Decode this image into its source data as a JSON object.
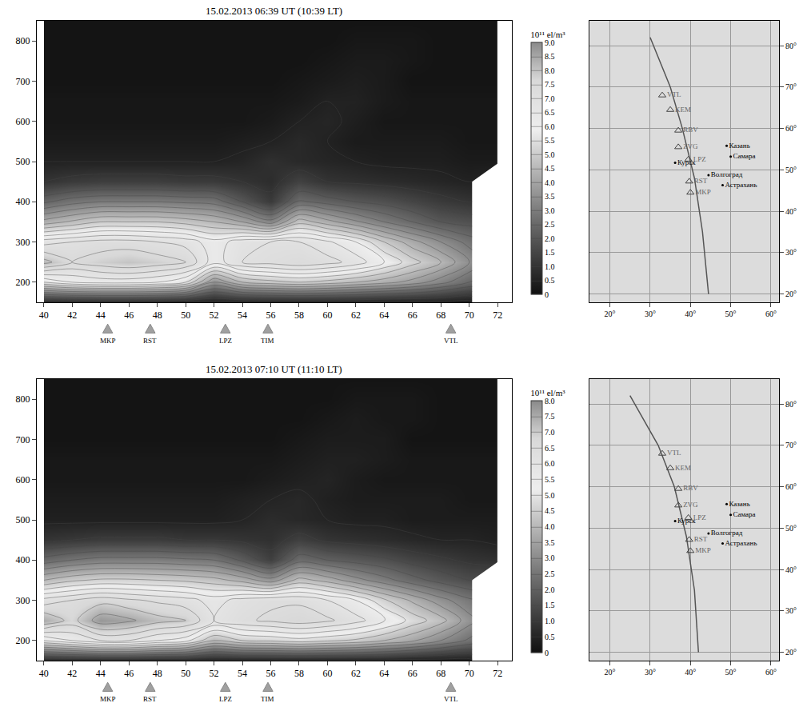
{
  "chart_data": [
    {
      "type": "contour",
      "title": "15.02.2013 06:39 UT (10:39 LT)",
      "x": [
        40,
        42,
        44,
        46,
        48,
        50,
        52,
        54,
        56,
        58,
        60,
        62,
        64,
        66,
        68,
        70,
        72
      ],
      "y": [
        150,
        200,
        250,
        300,
        350,
        400,
        450,
        500,
        550,
        600,
        650,
        700,
        750,
        800,
        850
      ],
      "z": [
        [
          0.6,
          0.6,
          0.6,
          0.6,
          0.6,
          0.5,
          0.4,
          0.5,
          0.5,
          0.5,
          0.5,
          0.5,
          0.4,
          0.4,
          0.4,
          0.3,
          null
        ],
        [
          5.5,
          6.0,
          6.2,
          6.2,
          6.0,
          5.5,
          3.5,
          4.5,
          4.8,
          5.0,
          4.8,
          4.5,
          4.2,
          3.8,
          3.2,
          2.5,
          null
        ],
        [
          8.2,
          7.5,
          7.8,
          8.0,
          7.8,
          7.5,
          6.2,
          7.0,
          7.2,
          7.4,
          7.2,
          6.8,
          6.0,
          5.2,
          4.5,
          3.5,
          null
        ],
        [
          6.8,
          7.0,
          7.2,
          7.2,
          7.0,
          6.8,
          6.2,
          6.8,
          7.0,
          7.0,
          6.6,
          6.0,
          5.0,
          4.2,
          3.5,
          2.8,
          null
        ],
        [
          4.2,
          4.6,
          5.0,
          5.0,
          5.0,
          4.8,
          4.5,
          4.0,
          3.2,
          4.8,
          4.2,
          3.6,
          3.0,
          2.5,
          2.0,
          1.8,
          null
        ],
        [
          2.4,
          2.8,
          3.0,
          3.0,
          3.0,
          2.9,
          2.8,
          2.0,
          1.2,
          2.6,
          2.3,
          2.0,
          1.8,
          1.5,
          1.2,
          1.0,
          null
        ],
        [
          1.0,
          1.2,
          1.3,
          1.3,
          1.3,
          1.2,
          1.2,
          1.0,
          0.8,
          1.4,
          1.0,
          0.9,
          0.8,
          0.7,
          0.6,
          0.5,
          null
        ],
        [
          0.5,
          0.5,
          0.5,
          0.5,
          0.5,
          0.5,
          0.5,
          0.6,
          0.9,
          0.7,
          0.6,
          0.5,
          0.4,
          0.4,
          0.4,
          0.3,
          0.3
        ],
        [
          0.3,
          0.3,
          0.3,
          0.3,
          0.3,
          0.3,
          0.3,
          0.4,
          0.5,
          0.7,
          0.5,
          0.3,
          0.3,
          0.3,
          0.3,
          0.2,
          0.2
        ],
        [
          0.2,
          0.2,
          0.2,
          0.2,
          0.2,
          0.2,
          0.2,
          0.2,
          0.3,
          0.5,
          0.6,
          0.4,
          0.2,
          0.2,
          0.2,
          0.2,
          0.2
        ],
        [
          0.2,
          0.2,
          0.2,
          0.2,
          0.2,
          0.2,
          0.2,
          0.2,
          0.2,
          0.3,
          0.5,
          0.5,
          0.3,
          0.2,
          0.2,
          0.2,
          0.2
        ],
        [
          0.1,
          0.1,
          0.1,
          0.1,
          0.1,
          0.1,
          0.1,
          0.1,
          0.1,
          0.2,
          0.3,
          0.4,
          0.3,
          0.1,
          0.1,
          0.1,
          0.1
        ],
        [
          0.1,
          0.1,
          0.1,
          0.1,
          0.1,
          0.1,
          0.1,
          0.1,
          0.1,
          0.1,
          0.2,
          0.3,
          0.3,
          0.2,
          0.1,
          0.1,
          0.1
        ],
        [
          0.1,
          0.1,
          0.1,
          0.1,
          0.1,
          0.1,
          0.1,
          0.1,
          0.1,
          0.1,
          0.1,
          0.2,
          0.2,
          0.2,
          0.1,
          0.1,
          0.1
        ],
        [
          0.1,
          0.1,
          0.1,
          0.1,
          0.1,
          0.1,
          0.1,
          0.1,
          0.1,
          0.1,
          0.1,
          0.1,
          0.1,
          0.1,
          0.1,
          0.1,
          0.1
        ]
      ],
      "xlim": [
        39.5,
        73
      ],
      "ylim": [
        150,
        850
      ],
      "xticks": [
        40,
        42,
        44,
        46,
        48,
        50,
        52,
        54,
        56,
        58,
        60,
        62,
        64,
        66,
        68,
        70,
        72
      ],
      "yticks": [
        200,
        300,
        400,
        500,
        600,
        700,
        800
      ],
      "colorbar_title": "10¹¹ el/m³",
      "clim": [
        0,
        9
      ],
      "cticks": [
        0,
        0.5,
        {
          "value": 1,
          "label": "1.0"
        },
        1.5,
        {
          "value": 2,
          "label": "2.0"
        },
        2.5,
        {
          "value": 3,
          "label": "3.0"
        },
        3.5,
        {
          "value": 4,
          "label": "4.0"
        },
        4.5,
        {
          "value": 5,
          "label": "5.0"
        },
        5.5,
        {
          "value": 6,
          "label": "6.0"
        },
        6.5,
        {
          "value": 7,
          "label": "7.0"
        },
        7.5,
        {
          "value": 8,
          "label": "8.0"
        },
        8.5,
        {
          "value": 9,
          "label": "9.0"
        }
      ],
      "stations": [
        {
          "name": "MKP",
          "x": 44.5
        },
        {
          "name": "RST",
          "x": 47.5
        },
        {
          "name": "LPZ",
          "x": 52.8
        },
        {
          "name": "TIM",
          "x": 55.8
        },
        {
          "name": "VTL",
          "x": 68.7
        }
      ]
    },
    {
      "type": "contour",
      "title": "15.02.2013 07:10 UT (11:10 LT)",
      "x": [
        40,
        42,
        44,
        46,
        48,
        50,
        52,
        54,
        56,
        58,
        60,
        62,
        64,
        66,
        68,
        70,
        72
      ],
      "y": [
        150,
        200,
        250,
        300,
        350,
        400,
        450,
        500,
        550,
        600,
        650,
        700,
        750,
        800,
        850
      ],
      "z": [
        [
          0.5,
          0.5,
          0.5,
          0.5,
          0.5,
          0.5,
          0.4,
          0.4,
          0.4,
          0.4,
          0.4,
          0.4,
          0.4,
          0.3,
          0.3,
          0.3,
          null
        ],
        [
          5.0,
          5.5,
          6.0,
          6.0,
          5.5,
          5.2,
          4.0,
          4.5,
          4.6,
          4.8,
          4.6,
          4.4,
          4.0,
          3.6,
          3.0,
          2.4,
          null
        ],
        [
          7.5,
          6.8,
          7.8,
          7.6,
          7.2,
          7.0,
          6.0,
          6.4,
          6.6,
          6.8,
          6.6,
          6.2,
          5.6,
          4.8,
          4.2,
          3.2,
          null
        ],
        [
          6.2,
          6.5,
          6.8,
          6.6,
          6.4,
          6.2,
          5.8,
          6.2,
          6.4,
          6.4,
          6.0,
          5.5,
          4.6,
          3.9,
          3.2,
          2.6,
          null
        ],
        [
          4.0,
          4.4,
          4.6,
          4.6,
          4.5,
          4.4,
          4.2,
          3.8,
          3.2,
          4.2,
          3.8,
          3.2,
          2.7,
          2.2,
          1.8,
          1.5,
          null
        ],
        [
          2.2,
          2.5,
          2.7,
          2.7,
          2.7,
          2.6,
          2.5,
          1.9,
          1.2,
          2.3,
          2.0,
          1.8,
          1.6,
          1.3,
          1.1,
          0.9,
          0.8
        ],
        [
          0.9,
          1.0,
          1.1,
          1.1,
          1.1,
          1.0,
          1.0,
          0.9,
          0.8,
          1.2,
          0.9,
          0.8,
          0.7,
          0.6,
          0.5,
          0.5,
          0.4
        ],
        [
          0.4,
          0.4,
          0.4,
          0.4,
          0.4,
          0.4,
          0.4,
          0.5,
          0.7,
          0.6,
          0.5,
          0.4,
          0.4,
          0.3,
          0.3,
          0.3,
          0.3
        ],
        [
          0.3,
          0.3,
          0.3,
          0.3,
          0.3,
          0.3,
          0.3,
          0.4,
          0.5,
          0.6,
          0.4,
          0.3,
          0.3,
          0.3,
          0.3,
          0.2,
          0.2
        ],
        [
          0.2,
          0.2,
          0.2,
          0.2,
          0.2,
          0.2,
          0.2,
          0.2,
          0.3,
          0.4,
          0.5,
          0.3,
          0.2,
          0.2,
          0.2,
          0.2,
          0.2
        ],
        [
          0.2,
          0.2,
          0.2,
          0.2,
          0.2,
          0.2,
          0.2,
          0.2,
          0.2,
          0.3,
          0.4,
          0.4,
          0.3,
          0.2,
          0.2,
          0.2,
          0.2
        ],
        [
          0.1,
          0.1,
          0.1,
          0.1,
          0.1,
          0.1,
          0.1,
          0.1,
          0.1,
          0.2,
          0.3,
          0.3,
          0.3,
          0.1,
          0.1,
          0.1,
          0.1
        ],
        [
          0.1,
          0.1,
          0.1,
          0.1,
          0.1,
          0.1,
          0.1,
          0.1,
          0.1,
          0.1,
          0.2,
          0.3,
          0.2,
          0.2,
          0.1,
          0.1,
          0.1
        ],
        [
          0.1,
          0.1,
          0.1,
          0.1,
          0.1,
          0.1,
          0.1,
          0.1,
          0.1,
          0.1,
          0.1,
          0.2,
          0.2,
          0.2,
          0.1,
          0.1,
          0.1
        ],
        [
          0.1,
          0.1,
          0.1,
          0.1,
          0.1,
          0.1,
          0.1,
          0.1,
          0.1,
          0.1,
          0.1,
          0.1,
          0.1,
          0.1,
          0.1,
          0.1,
          0.1
        ]
      ],
      "xlim": [
        39.5,
        73
      ],
      "ylim": [
        150,
        850
      ],
      "xticks": [
        40,
        42,
        44,
        46,
        48,
        50,
        52,
        54,
        56,
        58,
        60,
        62,
        64,
        66,
        68,
        70,
        72
      ],
      "yticks": [
        200,
        300,
        400,
        500,
        600,
        700,
        800
      ],
      "colorbar_title": "10¹¹ el/m³",
      "clim": [
        0,
        8
      ],
      "cticks": [
        0,
        0.5,
        {
          "value": 1,
          "label": "1.0"
        },
        1.5,
        {
          "value": 2,
          "label": "2.0"
        },
        2.5,
        {
          "value": 3,
          "label": "3.0"
        },
        3.5,
        {
          "value": 4,
          "label": "4.0"
        },
        4.5,
        {
          "value": 5,
          "label": "5.0"
        },
        5.5,
        {
          "value": 6,
          "label": "6.0"
        },
        6.5,
        {
          "value": 7,
          "label": "7.0"
        },
        7.5,
        {
          "value": 8,
          "label": "8.0"
        }
      ],
      "stations": [
        {
          "name": "MKP",
          "x": 44.5
        },
        {
          "name": "RST",
          "x": 47.5
        },
        {
          "name": "LPZ",
          "x": 52.8
        },
        {
          "name": "TIM",
          "x": 55.8
        },
        {
          "name": "VTL",
          "x": 68.7
        }
      ]
    },
    {
      "type": "map",
      "xlim": [
        15,
        62
      ],
      "ylim": [
        18,
        86
      ],
      "xticks": [
        {
          "value": 20,
          "label": "20°"
        },
        {
          "value": 30,
          "label": "30°"
        },
        {
          "value": 40,
          "label": "40°"
        },
        {
          "value": 50,
          "label": "50°"
        },
        {
          "value": 60,
          "label": "60°"
        }
      ],
      "yticks": [
        {
          "value": 20,
          "label": "20°"
        },
        {
          "value": 30,
          "label": "30°"
        },
        {
          "value": 40,
          "label": "40°"
        },
        {
          "value": 50,
          "label": "50°"
        },
        {
          "value": 60,
          "label": "60°"
        },
        {
          "value": 70,
          "label": "70°"
        },
        {
          "value": 80,
          "label": "80°"
        }
      ],
      "track": {
        "lon": [
          30,
          35,
          38,
          41,
          43,
          44.5
        ],
        "lat": [
          82,
          70,
          60,
          48,
          35,
          20
        ]
      },
      "stations": [
        {
          "name": "VTL",
          "lon": 33,
          "lat": 68
        },
        {
          "name": "KEM",
          "lon": 35,
          "lat": 64.5
        },
        {
          "name": "RBV",
          "lon": 37,
          "lat": 59.5
        },
        {
          "name": "ZVG",
          "lon": 37,
          "lat": 55.5
        },
        {
          "name": "LPZ",
          "lon": 39.5,
          "lat": 52.5
        },
        {
          "name": "RST",
          "lon": 39.7,
          "lat": 47.2
        },
        {
          "name": "MKP",
          "lon": 40,
          "lat": 44.5
        }
      ],
      "cities": [
        {
          "name": "Казань",
          "lon": 49,
          "lat": 55.8
        },
        {
          "name": "Самара",
          "lon": 50,
          "lat": 53.2
        },
        {
          "name": "Курск",
          "lon": 36.2,
          "lat": 51.7
        },
        {
          "name": "Волгоград",
          "lon": 44.5,
          "lat": 48.7
        },
        {
          "name": "Астрахань",
          "lon": 48,
          "lat": 46.3
        }
      ]
    },
    {
      "type": "map",
      "xlim": [
        15,
        62
      ],
      "ylim": [
        18,
        86
      ],
      "xticks": [
        {
          "value": 20,
          "label": "20°"
        },
        {
          "value": 30,
          "label": "30°"
        },
        {
          "value": 40,
          "label": "40°"
        },
        {
          "value": 50,
          "label": "50°"
        },
        {
          "value": 60,
          "label": "60°"
        }
      ],
      "yticks": [
        {
          "value": 20,
          "label": "20°"
        },
        {
          "value": 30,
          "label": "30°"
        },
        {
          "value": 40,
          "label": "40°"
        },
        {
          "value": 50,
          "label": "50°"
        },
        {
          "value": 60,
          "label": "60°"
        },
        {
          "value": 70,
          "label": "70°"
        },
        {
          "value": 80,
          "label": "80°"
        }
      ],
      "track": {
        "lon": [
          25,
          32,
          36,
          39,
          41,
          42
        ],
        "lat": [
          82,
          70,
          60,
          48,
          35,
          20
        ]
      },
      "stations": [
        {
          "name": "VTL",
          "lon": 33,
          "lat": 68
        },
        {
          "name": "KEM",
          "lon": 35,
          "lat": 64.5
        },
        {
          "name": "RBV",
          "lon": 37,
          "lat": 59.5
        },
        {
          "name": "ZVG",
          "lon": 37,
          "lat": 55.5
        },
        {
          "name": "LPZ",
          "lon": 39.5,
          "lat": 52.5
        },
        {
          "name": "RST",
          "lon": 39.7,
          "lat": 47.2
        },
        {
          "name": "MKP",
          "lon": 40,
          "lat": 44.5
        }
      ],
      "cities": [
        {
          "name": "Казань",
          "lon": 49,
          "lat": 55.8
        },
        {
          "name": "Самара",
          "lon": 50,
          "lat": 53.2
        },
        {
          "name": "Курск",
          "lon": 36.2,
          "lat": 51.7
        },
        {
          "name": "Волгоград",
          "lon": 44.5,
          "lat": 48.7
        },
        {
          "name": "Астрахань",
          "lon": 48,
          "lat": 46.3
        }
      ]
    }
  ]
}
